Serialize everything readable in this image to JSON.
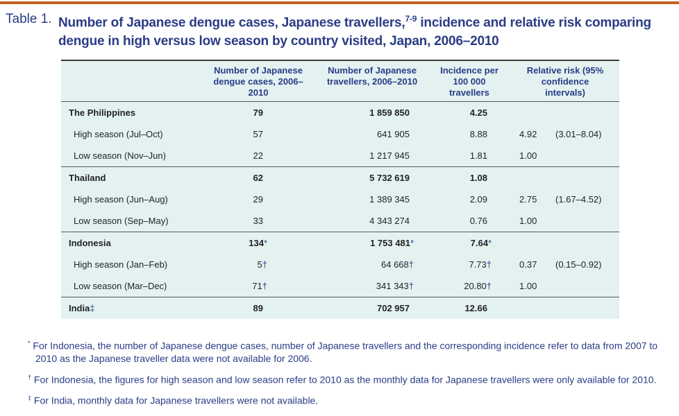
{
  "title": {
    "label": "Table 1.",
    "text": "Number of Japanese dengue cases, Japanese travellers,",
    "ref": "7-9",
    "text2": "incidence and relative risk comparing dengue in high versus low season by country visited, Japan, 2006–2010"
  },
  "columns": [
    "",
    "Number of Japanese dengue cases, 2006–2010",
    "Number of Japanese travellers, 2006–2010",
    "Incidence per 100 000 travellers",
    "Relative risk (95% confidence intervals)"
  ],
  "rows": [
    {
      "label": "The Philippines",
      "mark": "",
      "cases": "79",
      "cm": "",
      "travellers": "1 859 850",
      "tm": "",
      "incidence": "4.25",
      "im": "",
      "rr": "",
      "ci": "",
      "type": "grp"
    },
    {
      "label": "High season (Jul–Oct)",
      "mark": "",
      "cases": "57",
      "cm": "",
      "travellers": "641 905",
      "tm": "",
      "incidence": "8.88",
      "im": "",
      "rr": "4.92",
      "ci": "(3.01–8.04)",
      "type": "sub"
    },
    {
      "label": "Low season (Nov–Jun)",
      "mark": "",
      "cases": "22",
      "cm": "",
      "travellers": "1 217 945",
      "tm": "",
      "incidence": "1.81",
      "im": "",
      "rr": "1.00",
      "ci": "",
      "type": "sub"
    },
    {
      "label": "Thailand",
      "mark": "",
      "cases": "62",
      "cm": "",
      "travellers": "5 732 619",
      "tm": "",
      "incidence": "1.08",
      "im": "",
      "rr": "",
      "ci": "",
      "type": "grp"
    },
    {
      "label": "High season (Jun–Aug)",
      "mark": "",
      "cases": "29",
      "cm": "",
      "travellers": "1 389 345",
      "tm": "",
      "incidence": "2.09",
      "im": "",
      "rr": "2.75",
      "ci": "(1.67–4.52)",
      "type": "sub"
    },
    {
      "label": "Low season (Sep–May)",
      "mark": "",
      "cases": "33",
      "cm": "",
      "travellers": "4 343 274",
      "tm": "",
      "incidence": "0.76",
      "im": "",
      "rr": "1.00",
      "ci": "",
      "type": "sub"
    },
    {
      "label": "Indonesia",
      "mark": "",
      "cases": "134",
      "cm": "*",
      "travellers": "1 753 481",
      "tm": "*",
      "incidence": "7.64",
      "im": "*",
      "rr": "",
      "ci": "",
      "type": "grp"
    },
    {
      "label": "High season (Jan–Feb)",
      "mark": "",
      "cases": "5",
      "cm": "†",
      "travellers": "64 668",
      "tm": "†",
      "incidence": "7.73",
      "im": "†",
      "rr": "0.37",
      "ci": "(0.15–0.92)",
      "type": "sub"
    },
    {
      "label": "Low season (Mar–Dec)",
      "mark": "",
      "cases": "71",
      "cm": "†",
      "travellers": "341 343",
      "tm": "†",
      "incidence": "20.80",
      "im": "†",
      "rr": "1.00",
      "ci": "",
      "type": "sub"
    },
    {
      "label": "India",
      "mark": "‡",
      "cases": "89",
      "cm": "",
      "travellers": "702 957",
      "tm": "",
      "incidence": "12.66",
      "im": "",
      "rr": "",
      "ci": "",
      "type": "grp"
    }
  ],
  "footnotes": [
    {
      "mark": "*",
      "text": "For Indonesia, the number of Japanese dengue cases, number of Japanese travellers and the corresponding incidence refer to data from 2007 to 2010 as the Japanese traveller data were not available for 2006."
    },
    {
      "mark": "†",
      "text": "For Indonesia, the figures for high season and low season refer to 2010 as the monthly data for Japanese travellers were only available for 2010."
    },
    {
      "mark": "‡",
      "text": "For India, monthly data for Japanese travellers were not available."
    }
  ]
}
